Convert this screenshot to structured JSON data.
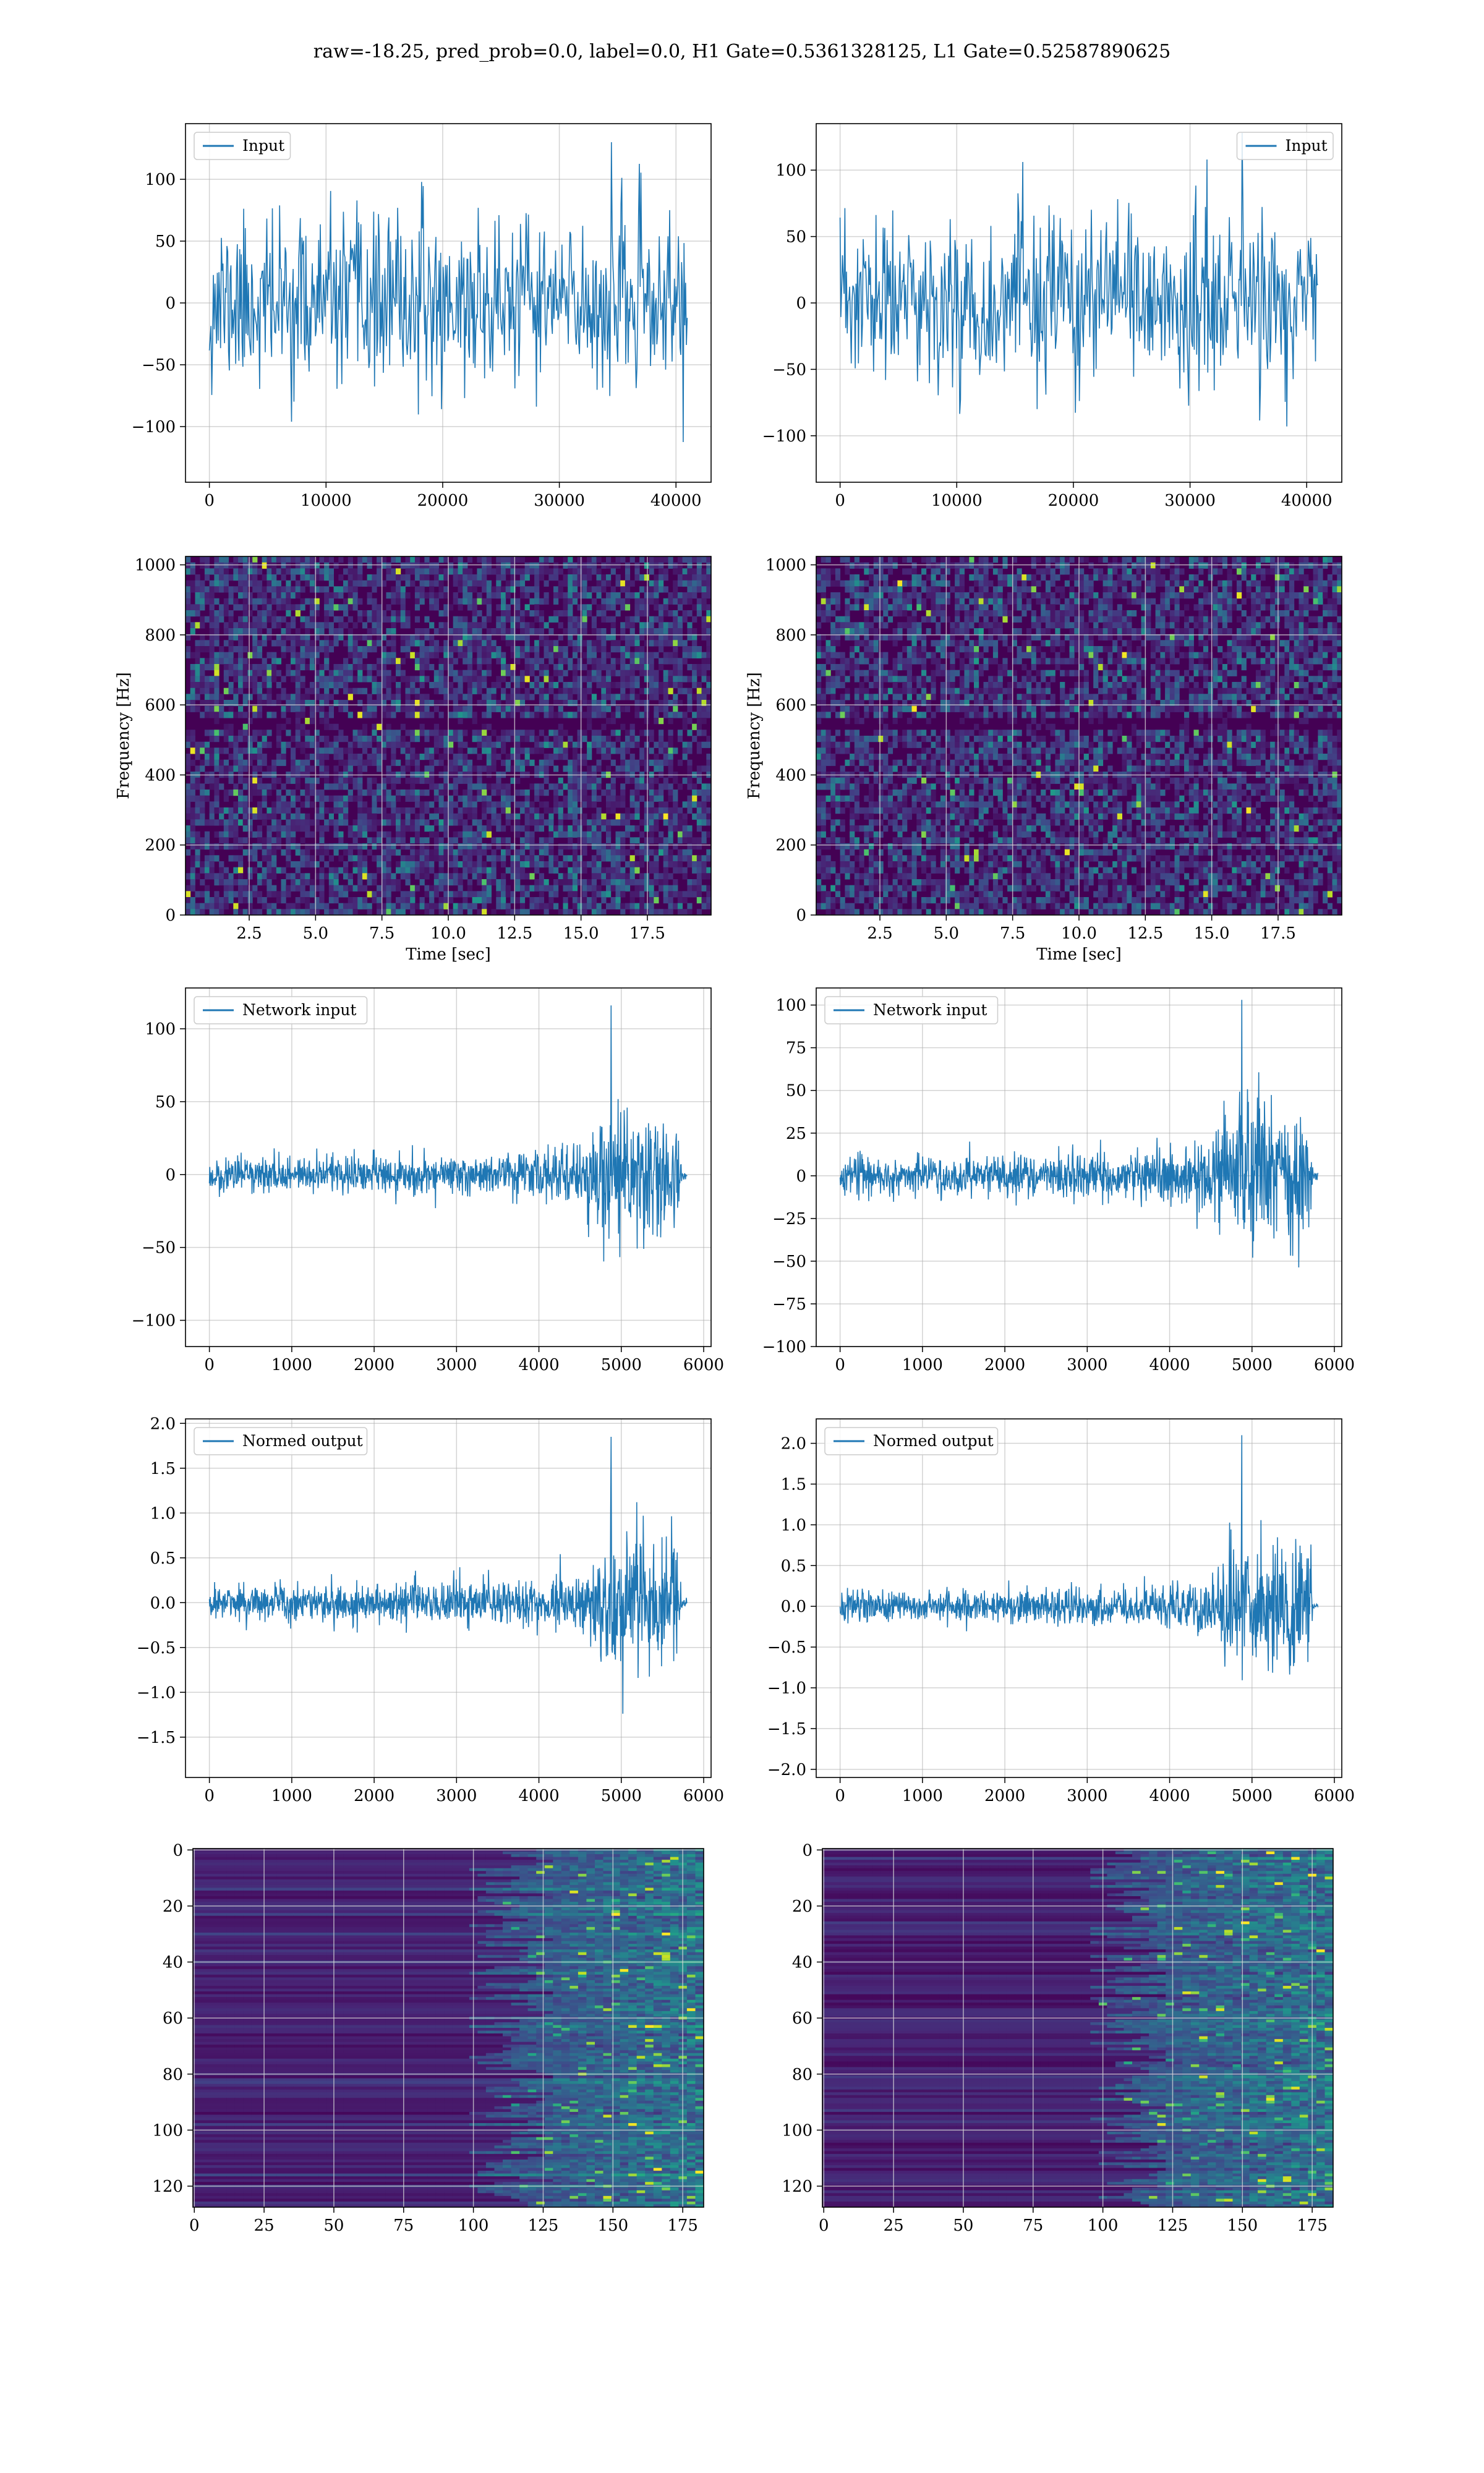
{
  "figure": {
    "title": "raw=-18.25, pred_prob=0.0, label=0.0, H1 Gate=0.5361328125, L1 Gate=0.52587890625"
  },
  "colors": {
    "series": "#1f77b4",
    "grid": "#b0b0b0",
    "viridis_dark": "#440154",
    "viridis_bright": "#fde725"
  },
  "chart_data": [
    {
      "id": "input-h1",
      "type": "line",
      "legend": [
        "Input"
      ],
      "legend_loc": "upper-left",
      "xlim": [
        -2048,
        43008
      ],
      "ylim": [
        -145,
        145
      ],
      "xticks": [
        0,
        10000,
        20000,
        30000,
        40000
      ],
      "yticks": [
        -100,
        -50,
        0,
        50,
        100
      ],
      "xtick_labels": [
        "0",
        "10000",
        "20000",
        "30000",
        "40000"
      ],
      "ytick_labels": [
        "−100",
        "−50",
        "0",
        "50",
        "100"
      ],
      "x_range": [
        0,
        40960
      ],
      "n_samples": 600,
      "envelope": [
        [
          0,
          75
        ],
        [
          1,
          75
        ]
      ],
      "peak": 130,
      "seed": 11,
      "grid": true
    },
    {
      "id": "input-l1",
      "type": "line",
      "legend": [
        "Input"
      ],
      "legend_loc": "upper-right",
      "xlim": [
        -2048,
        43008
      ],
      "ylim": [
        -135,
        135
      ],
      "xticks": [
        0,
        10000,
        20000,
        30000,
        40000
      ],
      "yticks": [
        -100,
        -50,
        0,
        50,
        100
      ],
      "xtick_labels": [
        "0",
        "10000",
        "20000",
        "30000",
        "40000"
      ],
      "ytick_labels": [
        "−100",
        "−50",
        "0",
        "50",
        "100"
      ],
      "x_range": [
        0,
        40960
      ],
      "n_samples": 600,
      "envelope": [
        [
          0,
          72
        ],
        [
          1,
          72
        ]
      ],
      "peak": 128,
      "seed": 23,
      "grid": true
    },
    {
      "id": "spec-h1",
      "type": "heatmap",
      "xlabel": "Time [sec]",
      "ylabel": "Frequency [Hz]",
      "xlim": [
        0.1,
        19.9
      ],
      "ylim": [
        0,
        1024
      ],
      "xticks": [
        2.5,
        5.0,
        7.5,
        10.0,
        12.5,
        15.0,
        17.5
      ],
      "yticks": [
        0,
        200,
        400,
        600,
        800,
        1000
      ],
      "xtick_labels": [
        "2.5",
        "5.0",
        "7.5",
        "10.0",
        "12.5",
        "15.0",
        "17.5"
      ],
      "ytick_labels": [
        "0",
        "200",
        "400",
        "600",
        "800",
        "1000"
      ],
      "grid": true,
      "seed": 31,
      "colormap": "viridis"
    },
    {
      "id": "spec-l1",
      "type": "heatmap",
      "xlabel": "Time [sec]",
      "ylabel": "Frequency [Hz]",
      "xlim": [
        0.1,
        19.9
      ],
      "ylim": [
        0,
        1024
      ],
      "xticks": [
        2.5,
        5.0,
        7.5,
        10.0,
        12.5,
        15.0,
        17.5
      ],
      "yticks": [
        0,
        200,
        400,
        600,
        800,
        1000
      ],
      "xtick_labels": [
        "2.5",
        "5.0",
        "7.5",
        "10.0",
        "12.5",
        "15.0",
        "17.5"
      ],
      "ytick_labels": [
        "0",
        "200",
        "400",
        "600",
        "800",
        "1000"
      ],
      "grid": true,
      "seed": 47,
      "colormap": "viridis"
    },
    {
      "id": "netin-h1",
      "type": "line",
      "legend": [
        "Network input"
      ],
      "legend_loc": "upper-left",
      "xlim": [
        -290,
        6090
      ],
      "ylim": [
        -118,
        128
      ],
      "xticks": [
        0,
        1000,
        2000,
        3000,
        4000,
        5000,
        6000
      ],
      "yticks": [
        -100,
        -50,
        0,
        50,
        100
      ],
      "xtick_labels": [
        "0",
        "1000",
        "2000",
        "3000",
        "4000",
        "5000",
        "6000"
      ],
      "ytick_labels": [
        "−100",
        "−50",
        "0",
        "50",
        "100"
      ],
      "x_range": [
        0,
        5800
      ],
      "n_samples": 1100,
      "envelope": [
        [
          0,
          13
        ],
        [
          0.6,
          16
        ],
        [
          0.78,
          24
        ],
        [
          0.82,
          50
        ],
        [
          0.88,
          50
        ],
        [
          0.985,
          42
        ],
        [
          0.99,
          3
        ],
        [
          1,
          3
        ]
      ],
      "peak": 116,
      "seed": 59,
      "grid": true
    },
    {
      "id": "netin-l1",
      "type": "line",
      "legend": [
        "Network input"
      ],
      "legend_loc": "upper-left",
      "xlim": [
        -290,
        6090
      ],
      "ylim": [
        -100,
        110
      ],
      "xticks": [
        0,
        1000,
        2000,
        3000,
        4000,
        5000,
        6000
      ],
      "yticks": [
        -100,
        -75,
        -50,
        -25,
        0,
        25,
        50,
        75,
        100
      ],
      "xtick_labels": [
        "0",
        "1000",
        "2000",
        "3000",
        "4000",
        "5000",
        "6000"
      ],
      "ytick_labels": [
        "−100",
        "−75",
        "−50",
        "−25",
        "0",
        "25",
        "50",
        "75",
        "100"
      ],
      "x_range": [
        0,
        5800
      ],
      "n_samples": 1100,
      "envelope": [
        [
          0,
          12
        ],
        [
          0.6,
          15
        ],
        [
          0.78,
          22
        ],
        [
          0.82,
          45
        ],
        [
          0.88,
          50
        ],
        [
          0.985,
          44
        ],
        [
          0.99,
          3
        ],
        [
          1,
          3
        ]
      ],
      "peak": 103,
      "seed": 67,
      "grid": true
    },
    {
      "id": "normout-h1",
      "type": "line",
      "legend": [
        "Normed output"
      ],
      "legend_loc": "upper-left",
      "xlim": [
        -290,
        6090
      ],
      "ylim": [
        -1.95,
        2.05
      ],
      "xticks": [
        0,
        1000,
        2000,
        3000,
        4000,
        5000,
        6000
      ],
      "yticks": [
        -1.5,
        -1.0,
        -0.5,
        0.0,
        0.5,
        1.0,
        1.5,
        2.0
      ],
      "xtick_labels": [
        "0",
        "1000",
        "2000",
        "3000",
        "4000",
        "5000",
        "6000"
      ],
      "ytick_labels": [
        "−1.5",
        "−1.0",
        "−0.5",
        "0.0",
        "0.5",
        "1.0",
        "1.5",
        "2.0"
      ],
      "x_range": [
        0,
        5800
      ],
      "n_samples": 1100,
      "envelope": [
        [
          0,
          0.22
        ],
        [
          0.6,
          0.27
        ],
        [
          0.78,
          0.4
        ],
        [
          0.82,
          0.85
        ],
        [
          0.88,
          0.9
        ],
        [
          0.985,
          0.72
        ],
        [
          0.99,
          0.05
        ],
        [
          1,
          0.05
        ]
      ],
      "peak": 1.85,
      "seed": 71,
      "grid": true
    },
    {
      "id": "normout-l1",
      "type": "line",
      "legend": [
        "Normed output"
      ],
      "legend_loc": "upper-left",
      "xlim": [
        -290,
        6090
      ],
      "ylim": [
        -2.1,
        2.3
      ],
      "xticks": [
        0,
        1000,
        2000,
        3000,
        4000,
        5000,
        6000
      ],
      "yticks": [
        -2.0,
        -1.5,
        -1.0,
        -0.5,
        0.0,
        0.5,
        1.0,
        1.5,
        2.0
      ],
      "xtick_labels": [
        "0",
        "1000",
        "2000",
        "3000",
        "4000",
        "5000",
        "6000"
      ],
      "ytick_labels": [
        "−2.0",
        "−1.5",
        "−1.0",
        "−0.5",
        "0.0",
        "0.5",
        "1.0",
        "1.5",
        "2.0"
      ],
      "x_range": [
        0,
        5800
      ],
      "n_samples": 1100,
      "envelope": [
        [
          0,
          0.22
        ],
        [
          0.6,
          0.26
        ],
        [
          0.78,
          0.38
        ],
        [
          0.82,
          0.9
        ],
        [
          0.88,
          1.0
        ],
        [
          0.985,
          0.85
        ],
        [
          0.99,
          0.05
        ],
        [
          1,
          0.05
        ]
      ],
      "peak": 2.1,
      "seed": 83,
      "grid": true
    },
    {
      "id": "feat-h1",
      "type": "heatmap",
      "xlim": [
        -0.5,
        182.5
      ],
      "ylim": [
        127.5,
        -0.5
      ],
      "xticks": [
        0,
        25,
        50,
        75,
        100,
        125,
        150,
        175
      ],
      "yticks": [
        0,
        20,
        40,
        60,
        80,
        100,
        120
      ],
      "xtick_labels": [
        "0",
        "25",
        "50",
        "75",
        "100",
        "125",
        "150",
        "175"
      ],
      "ytick_labels": [
        "0",
        "20",
        "40",
        "60",
        "80",
        "100",
        "120"
      ],
      "grid": true,
      "rows": 128,
      "cols": 183,
      "onset": 112,
      "seed": 97,
      "colormap": "viridis"
    },
    {
      "id": "feat-l1",
      "type": "heatmap",
      "xlim": [
        -0.5,
        182.5
      ],
      "ylim": [
        127.5,
        -0.5
      ],
      "xticks": [
        0,
        25,
        50,
        75,
        100,
        125,
        150,
        175
      ],
      "yticks": [
        0,
        20,
        40,
        60,
        80,
        100,
        120
      ],
      "xtick_labels": [
        "0",
        "25",
        "50",
        "75",
        "100",
        "125",
        "150",
        "175"
      ],
      "ytick_labels": [
        "0",
        "20",
        "40",
        "60",
        "80",
        "100",
        "120"
      ],
      "grid": true,
      "rows": 128,
      "cols": 183,
      "onset": 108,
      "seed": 113,
      "colormap": "viridis"
    }
  ]
}
